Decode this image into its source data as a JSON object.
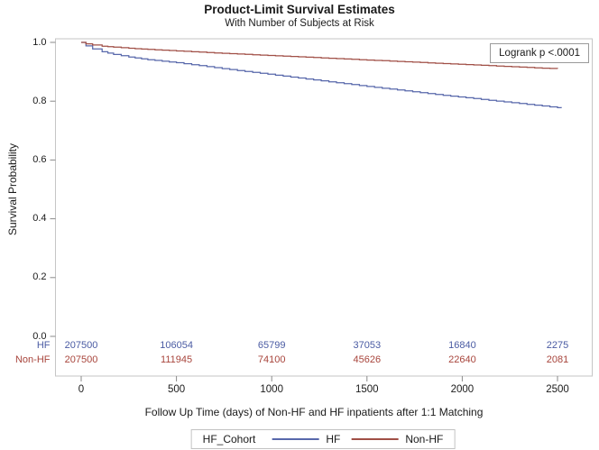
{
  "title": "Product-Limit Survival Estimates",
  "subtitle": "With Number of Subjects at Risk",
  "annotation": {
    "logrank": "Logrank p <.0001"
  },
  "axes": {
    "y_label": "Survival Probability",
    "y_ticks": [
      "1.0",
      "0.8",
      "0.6",
      "0.4",
      "0.2",
      "0.0"
    ],
    "x_label": "Follow Up Time (days) of Non-HF and HF inpatients after 1:1 Matching",
    "x_ticks": [
      "0",
      "500",
      "1000",
      "1500",
      "2000",
      "2500"
    ]
  },
  "at_risk": {
    "rows": [
      {
        "label": "HF",
        "color": "#4a5ba3",
        "values": [
          "207500",
          "106054",
          "65799",
          "37053",
          "16840",
          "2275"
        ]
      },
      {
        "label": "Non-HF",
        "color": "#a8453c",
        "values": [
          "207500",
          "111945",
          "74100",
          "45626",
          "22640",
          "2081"
        ]
      }
    ]
  },
  "legend": {
    "title": "HF_Cohort",
    "entries": [
      {
        "label": "HF",
        "color": "#5868ab"
      },
      {
        "label": "Non-HF",
        "color": "#a04f46"
      }
    ]
  },
  "colors": {
    "frame": "#c6c6c6",
    "tick": "#8a8a8a",
    "text": "#1a1a1a"
  },
  "chart_data": {
    "type": "line",
    "subtype": "kaplan-meier-step",
    "title": "Product-Limit Survival Estimates",
    "subtitle": "With Number of Subjects at Risk",
    "xlabel": "Follow Up Time (days) of Non-HF and HF inpatients after 1:1 Matching",
    "ylabel": "Survival Probability",
    "xlim": [
      -135,
      2680
    ],
    "ylim": [
      0.0,
      1.0
    ],
    "x_ticks": [
      0,
      500,
      1000,
      1500,
      2000,
      2500
    ],
    "y_ticks": [
      0.0,
      0.2,
      0.4,
      0.6,
      0.8,
      1.0
    ],
    "grid": false,
    "annotation": "Logrank p <.0001",
    "legend_position": "bottom",
    "series": [
      {
        "name": "HF",
        "color": "#5868ab",
        "x": [
          0,
          25,
          60,
          110,
          170,
          250,
          350,
          500,
          700,
          900,
          1100,
          1300,
          1500,
          1700,
          1900,
          2100,
          2300,
          2500,
          2520
        ],
        "y": [
          1.0,
          0.988,
          0.978,
          0.968,
          0.959,
          0.95,
          0.941,
          0.931,
          0.914,
          0.898,
          0.882,
          0.866,
          0.85,
          0.835,
          0.82,
          0.806,
          0.792,
          0.778,
          0.777
        ]
      },
      {
        "name": "Non-HF",
        "color": "#a04f46",
        "x": [
          0,
          25,
          60,
          110,
          170,
          250,
          350,
          500,
          700,
          900,
          1100,
          1300,
          1500,
          1700,
          1900,
          2100,
          2300,
          2500
        ],
        "y": [
          1.0,
          0.995,
          0.991,
          0.987,
          0.984,
          0.98,
          0.976,
          0.971,
          0.964,
          0.958,
          0.952,
          0.946,
          0.94,
          0.934,
          0.928,
          0.922,
          0.916,
          0.91
        ]
      }
    ],
    "at_risk_table": {
      "x": [
        0,
        500,
        1000,
        1500,
        2000,
        2500
      ],
      "rows": [
        {
          "name": "HF",
          "counts": [
            207500,
            106054,
            65799,
            37053,
            16840,
            2275
          ]
        },
        {
          "name": "Non-HF",
          "counts": [
            207500,
            111945,
            74100,
            45626,
            22640,
            2081
          ]
        }
      ]
    }
  }
}
